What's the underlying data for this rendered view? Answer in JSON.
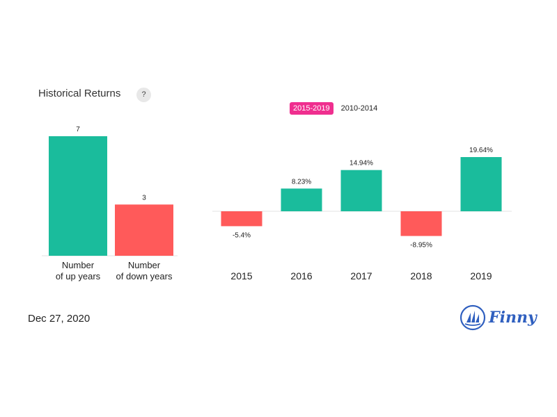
{
  "header": {
    "title": "Historical Returns",
    "help_label": "?"
  },
  "tabs": [
    {
      "label": "2015-2019",
      "active": true
    },
    {
      "label": "2010-2014",
      "active": false
    }
  ],
  "footer": {
    "date": "Dec 27, 2020",
    "brand": "Finny"
  },
  "colors": {
    "positive": "#1abc9c",
    "negative": "#ff5a5a",
    "accent": "#ef2f8f",
    "brand": "#2f5fbf"
  },
  "chart_data": [
    {
      "type": "bar",
      "categories": [
        [
          "Number",
          "of up years"
        ],
        [
          "Number",
          "of down years"
        ]
      ],
      "values": [
        7,
        3
      ],
      "value_labels": [
        "7",
        "3"
      ],
      "ylim": [
        0,
        7
      ]
    },
    {
      "type": "bar",
      "categories": [
        "2015",
        "2016",
        "2017",
        "2018",
        "2019"
      ],
      "values": [
        -5.4,
        8.23,
        14.94,
        -8.95,
        19.64
      ],
      "value_labels": [
        "-5.4%",
        "8.23%",
        "14.94%",
        "-8.95%",
        "19.64%"
      ],
      "ylabel": "",
      "ylim": [
        -8.95,
        19.64
      ]
    }
  ]
}
